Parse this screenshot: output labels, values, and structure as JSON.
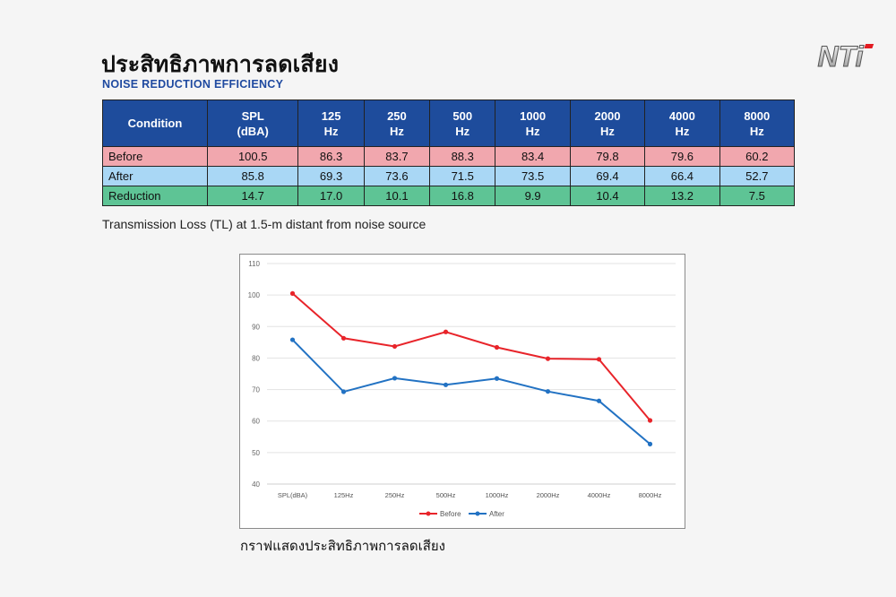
{
  "header": {
    "title_th": "ประสิทธิภาพการลดเสียง",
    "title_en": "NOISE REDUCTION EFFICIENCY",
    "logo_text": "NTi"
  },
  "table": {
    "headers": [
      {
        "line1": "Condition",
        "line2": ""
      },
      {
        "line1": "SPL",
        "line2": "(dBA)"
      },
      {
        "line1": "125",
        "line2": "Hz"
      },
      {
        "line1": "250",
        "line2": "Hz"
      },
      {
        "line1": "500",
        "line2": "Hz"
      },
      {
        "line1": "1000",
        "line2": "Hz"
      },
      {
        "line1": "2000",
        "line2": "Hz"
      },
      {
        "line1": "4000",
        "line2": "Hz"
      },
      {
        "line1": "8000",
        "line2": "Hz"
      }
    ],
    "rows": [
      {
        "label": "Before",
        "values": [
          "100.5",
          "86.3",
          "83.7",
          "88.3",
          "83.4",
          "79.8",
          "79.6",
          "60.2"
        ]
      },
      {
        "label": "After",
        "values": [
          "85.8",
          "69.3",
          "73.6",
          "71.5",
          "73.5",
          "69.4",
          "66.4",
          "52.7"
        ]
      },
      {
        "label": "Reduction",
        "values": [
          "14.7",
          "17.0",
          "10.1",
          "16.8",
          "9.9",
          "10.4",
          "13.2",
          "7.5"
        ]
      }
    ]
  },
  "caption": "Transmission Loss (TL) at 1.5-m distant from noise source",
  "chart_caption": "กราฟแสดงประสิทธิภาพการลดเสียง",
  "chart_data": {
    "type": "line",
    "categories": [
      "SPL(dBA)",
      "125Hz",
      "250Hz",
      "500Hz",
      "1000Hz",
      "2000Hz",
      "4000Hz",
      "8000Hz"
    ],
    "series": [
      {
        "name": "Before",
        "color": "#e8242a",
        "values": [
          100.5,
          86.3,
          83.7,
          88.3,
          83.4,
          79.8,
          79.6,
          60.2
        ]
      },
      {
        "name": "After",
        "color": "#2272c3",
        "values": [
          85.8,
          69.3,
          73.6,
          71.5,
          73.5,
          69.4,
          66.4,
          52.7
        ]
      }
    ],
    "ylim": [
      40,
      110
    ],
    "yticks": [
      40,
      50,
      60,
      70,
      80,
      90,
      100,
      110
    ],
    "grid": true,
    "legend": "bottom"
  }
}
